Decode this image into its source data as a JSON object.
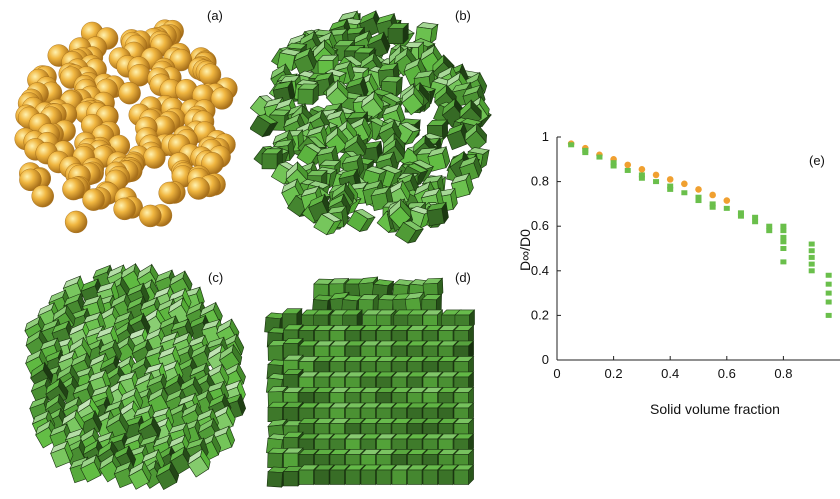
{
  "panels": {
    "a": {
      "label": "(a)",
      "description_icon": "sphere-packing-illustration",
      "color": "#e8a52a"
    },
    "b": {
      "label": "(b)",
      "description_icon": "random-cube-packing-illustration",
      "color": "#4e9a3a"
    },
    "c": {
      "label": "(c)",
      "description_icon": "partially-ordered-cube-packing-illustration",
      "color": "#4e9a3a"
    },
    "d": {
      "label": "(d)",
      "description_icon": "ordered-cube-packing-illustration",
      "color": "#4e9a3a"
    }
  },
  "chart_data": {
    "type": "scatter",
    "panel_label": "(e)",
    "xlabel": "Solid volume fraction",
    "ylabel": "D∞/D0",
    "xlim": [
      0,
      1.0
    ],
    "ylim": [
      0,
      1
    ],
    "xticks": [
      "0",
      "0.2",
      "0.4",
      "0.6",
      "0.8"
    ],
    "yticks": [
      "0",
      "0.2",
      "0.4",
      "0.6",
      "0.8",
      "1"
    ],
    "grid": false,
    "series": [
      {
        "marker": "circle",
        "color": "#f0a030",
        "points": [
          [
            0.05,
            0.97
          ],
          [
            0.1,
            0.95
          ],
          [
            0.15,
            0.92
          ],
          [
            0.2,
            0.9
          ],
          [
            0.25,
            0.875
          ],
          [
            0.3,
            0.855
          ],
          [
            0.35,
            0.83
          ],
          [
            0.4,
            0.81
          ],
          [
            0.45,
            0.79
          ],
          [
            0.5,
            0.765
          ],
          [
            0.55,
            0.74
          ],
          [
            0.6,
            0.715
          ]
        ]
      },
      {
        "marker": "square",
        "color": "#6abf4b",
        "points": [
          [
            0.05,
            0.965
          ],
          [
            0.1,
            0.94
          ],
          [
            0.1,
            0.93
          ],
          [
            0.15,
            0.91
          ],
          [
            0.2,
            0.885
          ],
          [
            0.2,
            0.87
          ],
          [
            0.25,
            0.85
          ],
          [
            0.3,
            0.83
          ],
          [
            0.3,
            0.815
          ],
          [
            0.35,
            0.8
          ],
          [
            0.4,
            0.78
          ],
          [
            0.4,
            0.765
          ],
          [
            0.45,
            0.75
          ],
          [
            0.5,
            0.73
          ],
          [
            0.5,
            0.715
          ],
          [
            0.55,
            0.7
          ],
          [
            0.55,
            0.685
          ],
          [
            0.6,
            0.68
          ],
          [
            0.65,
            0.66
          ],
          [
            0.65,
            0.645
          ],
          [
            0.7,
            0.64
          ],
          [
            0.7,
            0.62
          ],
          [
            0.75,
            0.6
          ],
          [
            0.75,
            0.58
          ],
          [
            0.8,
            0.6
          ],
          [
            0.8,
            0.58
          ],
          [
            0.8,
            0.55
          ],
          [
            0.8,
            0.53
          ],
          [
            0.8,
            0.5
          ],
          [
            0.8,
            0.44
          ],
          [
            0.9,
            0.52
          ],
          [
            0.9,
            0.49
          ],
          [
            0.9,
            0.46
          ],
          [
            0.9,
            0.43
          ],
          [
            0.9,
            0.4
          ],
          [
            0.96,
            0.38
          ],
          [
            0.96,
            0.34
          ],
          [
            0.96,
            0.3
          ],
          [
            0.96,
            0.26
          ],
          [
            0.96,
            0.2
          ]
        ]
      }
    ]
  }
}
